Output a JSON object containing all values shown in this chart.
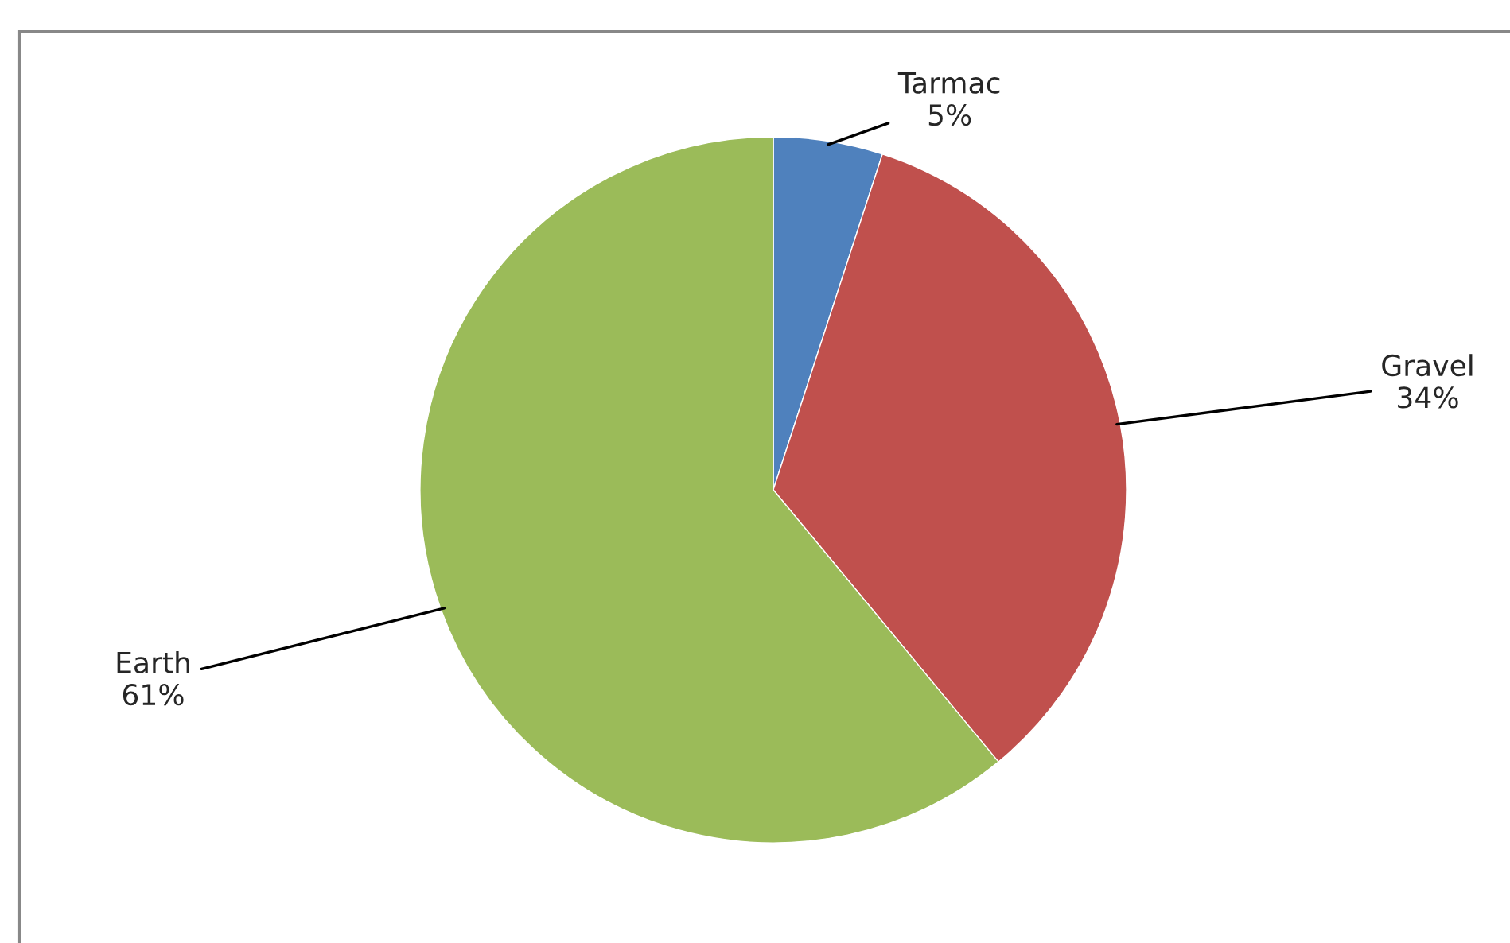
{
  "chart_data": {
    "type": "pie",
    "categories": [
      "Tarmac",
      "Gravel",
      "Earth"
    ],
    "values": [
      5,
      34,
      61
    ],
    "value_labels": [
      "5%",
      "34%",
      "61%"
    ],
    "colors": [
      "#4f81bd",
      "#c0504d",
      "#9bbb59"
    ],
    "legend": false
  }
}
